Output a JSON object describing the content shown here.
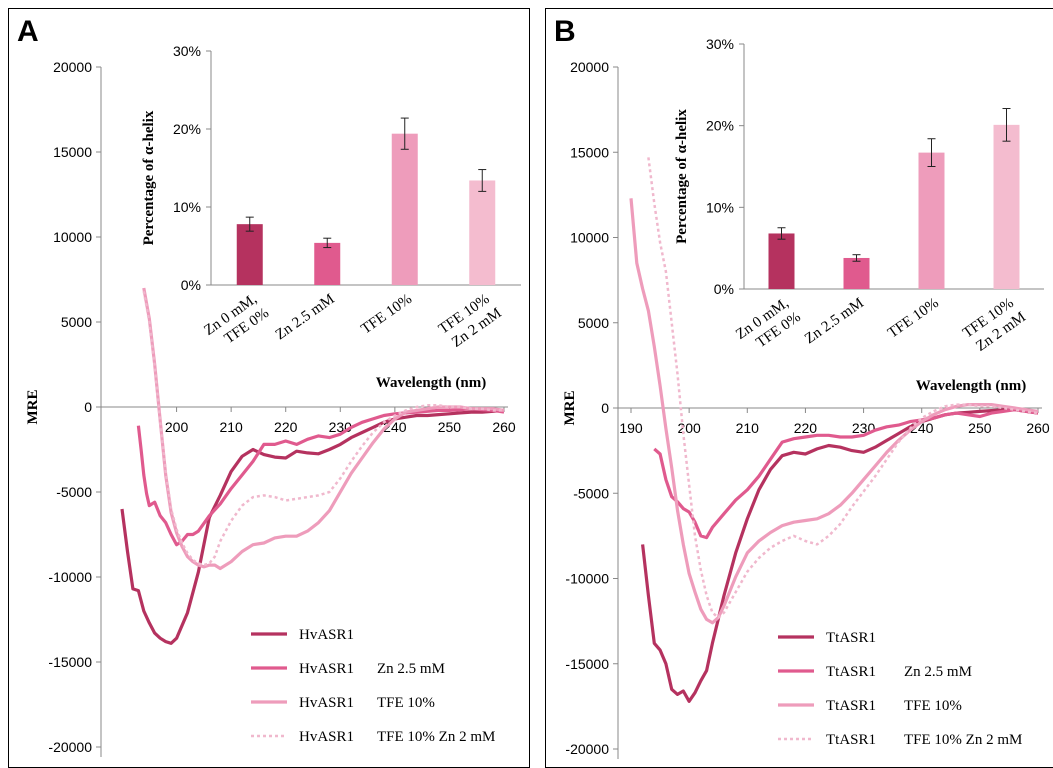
{
  "panels": [
    {
      "letter": "A",
      "main_x_ticks": [
        "200",
        "210",
        "220",
        "230",
        "240",
        "250",
        "260"
      ],
      "main_y_ticks": [
        "20000",
        "15000",
        "10000",
        "5000",
        "0",
        "-5000",
        "-10000",
        "-15000",
        "-20000"
      ]
    },
    {
      "letter": "B",
      "main_x_ticks": [
        "190",
        "200",
        "210",
        "220",
        "230",
        "240",
        "250",
        "260"
      ],
      "main_y_ticks": [
        "20000",
        "15000",
        "10000",
        "5000",
        "0",
        "-5000",
        "-10000",
        "-15000",
        "-20000"
      ]
    }
  ],
  "colors": {
    "series1": "#b5325f",
    "series2": "#e05a8e",
    "series3": "#ee9cbb",
    "series4": "#f0b8cd",
    "bar1": "#b5325f",
    "bar2": "#e05a8e",
    "bar3": "#ee9cbb",
    "bar4": "#f4bccf"
  },
  "chart_data": [
    {
      "type": "line",
      "panel": "A",
      "xlabel": "Wavelength (nm)",
      "ylabel": "MRE",
      "xlim": [
        190,
        260
      ],
      "ylim": [
        -20000,
        20000
      ],
      "x_ticks": [
        200,
        210,
        220,
        230,
        240,
        250,
        260
      ],
      "y_ticks": [
        20000,
        15000,
        10000,
        5000,
        0,
        -5000,
        -10000,
        -15000,
        -20000
      ],
      "legend_position": "bottom",
      "series": [
        {
          "name": "HvASR1",
          "style": "solid",
          "x": [
            190,
            191,
            192,
            193,
            194,
            195,
            196,
            197,
            198,
            199,
            200,
            202,
            204,
            206,
            208,
            210,
            212,
            214,
            216,
            218,
            220,
            222,
            224,
            226,
            228,
            230,
            232,
            234,
            236,
            238,
            240,
            242,
            244,
            246,
            248,
            250,
            252,
            254,
            256,
            258,
            260
          ],
          "y": [
            -6000,
            -8500,
            -10700,
            -10800,
            -12000,
            -12700,
            -13300,
            -13600,
            -13800,
            -13900,
            -13600,
            -12100,
            -9700,
            -6500,
            -5200,
            -3800,
            -2900,
            -2500,
            -2800,
            -2950,
            -3000,
            -2600,
            -2700,
            -2750,
            -2500,
            -2200,
            -1800,
            -1500,
            -1200,
            -900,
            -700,
            -600,
            -500,
            -500,
            -450,
            -400,
            -350,
            -300,
            -300,
            -250,
            -200
          ]
        },
        {
          "name": "HvASR1   Zn 2.5 mM",
          "style": "solid",
          "x": [
            193,
            193.5,
            194,
            194.5,
            195,
            195.5,
            196,
            197,
            198,
            199,
            200,
            201,
            202,
            203,
            204,
            206,
            208,
            210,
            212,
            214,
            216,
            218,
            220,
            222,
            224,
            226,
            228,
            230,
            232,
            234,
            236,
            238,
            240,
            242,
            244,
            246,
            248,
            250,
            252,
            254,
            256,
            258,
            260
          ],
          "y": [
            -1100,
            -2500,
            -4000,
            -5100,
            -5800,
            -5700,
            -5600,
            -6400,
            -6800,
            -7500,
            -8100,
            -7900,
            -7500,
            -7500,
            -7300,
            -6400,
            -5700,
            -4800,
            -4000,
            -3200,
            -2200,
            -2200,
            -2000,
            -2200,
            -1900,
            -1700,
            -1800,
            -1600,
            -1200,
            -900,
            -700,
            -500,
            -400,
            -350,
            -300,
            -250,
            -200,
            -200,
            -150,
            -100,
            -150,
            -200,
            -300
          ]
        },
        {
          "name": "HvASR1   TFE 10%",
          "style": "solid",
          "x": [
            194,
            195,
            196,
            197,
            198,
            199,
            200,
            201,
            202,
            203,
            204,
            205,
            206,
            207,
            208,
            210,
            212,
            214,
            216,
            218,
            220,
            222,
            224,
            226,
            228,
            230,
            232,
            234,
            236,
            238,
            240,
            242,
            244,
            246,
            248,
            250,
            252,
            254,
            256,
            258,
            260
          ],
          "y": [
            7000,
            5200,
            2500,
            -800,
            -4000,
            -6200,
            -7400,
            -8200,
            -8800,
            -9100,
            -9300,
            -9400,
            -9300,
            -9300,
            -9500,
            -9100,
            -8500,
            -8100,
            -8000,
            -7700,
            -7600,
            -7600,
            -7300,
            -6800,
            -6100,
            -5000,
            -3900,
            -3000,
            -2100,
            -1300,
            -700,
            -300,
            -200,
            -100,
            0,
            0,
            0,
            -100,
            -100,
            -100,
            -200
          ]
        },
        {
          "name": "HvASR1   TFE 10% Zn 2 mM",
          "style": "dotted",
          "x": [
            194,
            195,
            196,
            197,
            198,
            199,
            200,
            201,
            202,
            203,
            204,
            205,
            206,
            207,
            208,
            210,
            212,
            214,
            216,
            218,
            220,
            222,
            224,
            226,
            228,
            230,
            232,
            234,
            236,
            238,
            240,
            242,
            244,
            246,
            248,
            250,
            252,
            254,
            256,
            258,
            260
          ],
          "y": [
            6800,
            5000,
            2400,
            -900,
            -3800,
            -6000,
            -7200,
            -8000,
            -8600,
            -9000,
            -9200,
            -9300,
            -9200,
            -8800,
            -7900,
            -6700,
            -5800,
            -5300,
            -5200,
            -5300,
            -5500,
            -5400,
            -5300,
            -5200,
            -5000,
            -4200,
            -3200,
            -2300,
            -1500,
            -900,
            -500,
            -200,
            0,
            100,
            100,
            0,
            0,
            -100,
            -100,
            -200,
            -200
          ]
        }
      ],
      "inset": {
        "type": "bar",
        "ylabel": "Percentage of α-helix",
        "ylim": [
          0,
          30
        ],
        "y_ticks": [
          "0%",
          "10%",
          "20%",
          "30%"
        ],
        "categories": [
          [
            "Zn 0 mM,",
            "TFE 0%"
          ],
          [
            "Zn 2.5 mM"
          ],
          [
            "TFE 10%"
          ],
          [
            "TFE 10%",
            "Zn 2 mM"
          ]
        ],
        "values": [
          7.8,
          5.4,
          19.4,
          13.4
        ],
        "errors": [
          0.9,
          0.6,
          2.0,
          1.4
        ]
      }
    },
    {
      "type": "line",
      "panel": "B",
      "xlabel": "Wavelength (nm)",
      "ylabel": "MRE",
      "xlim": [
        190,
        260
      ],
      "ylim": [
        -20000,
        20000
      ],
      "x_ticks": [
        190,
        200,
        210,
        220,
        230,
        240,
        250,
        260
      ],
      "y_ticks": [
        20000,
        15000,
        10000,
        5000,
        0,
        -5000,
        -10000,
        -15000,
        -20000
      ],
      "legend_position": "bottom",
      "series": [
        {
          "name": "TtASR1",
          "style": "solid",
          "x": [
            192,
            193,
            194,
            195,
            196,
            197,
            198,
            199,
            200,
            201,
            202,
            203,
            204,
            206,
            208,
            210,
            212,
            214,
            216,
            218,
            220,
            222,
            224,
            226,
            228,
            230,
            232,
            234,
            236,
            238,
            240,
            242,
            244,
            246,
            248,
            250,
            252,
            254,
            256,
            258,
            260
          ],
          "y": [
            -8000,
            -11000,
            -13800,
            -14200,
            -15000,
            -16500,
            -16800,
            -16600,
            -17200,
            -16700,
            -16000,
            -15400,
            -13800,
            -11000,
            -8500,
            -6500,
            -4800,
            -3600,
            -2800,
            -2600,
            -2700,
            -2400,
            -2200,
            -2300,
            -2500,
            -2600,
            -2300,
            -1900,
            -1500,
            -1100,
            -800,
            -600,
            -400,
            -300,
            -250,
            -200,
            -150,
            -100,
            -100,
            -200,
            -300
          ]
        },
        {
          "name": "TtASR1   Zn 2.5 mM",
          "style": "solid",
          "x": [
            194,
            195,
            196,
            197,
            198,
            199,
            200,
            201,
            202,
            203,
            204,
            206,
            208,
            210,
            212,
            214,
            216,
            218,
            220,
            222,
            224,
            226,
            228,
            230,
            232,
            234,
            236,
            238,
            240,
            242,
            244,
            246,
            248,
            250,
            252,
            254,
            256,
            258,
            260
          ],
          "y": [
            -2400,
            -2700,
            -4200,
            -5200,
            -5500,
            -5900,
            -6100,
            -6700,
            -7500,
            -7600,
            -7000,
            -6200,
            -5400,
            -4800,
            -4000,
            -3000,
            -2000,
            -1800,
            -1700,
            -1600,
            -1600,
            -1700,
            -1700,
            -1600,
            -1300,
            -1100,
            -1000,
            -800,
            -700,
            -600,
            -400,
            -300,
            -400,
            -500,
            -300,
            -200,
            -100,
            -200,
            -300
          ]
        },
        {
          "name": "TtASR1   TFE 10%",
          "style": "solid",
          "x": [
            190,
            191,
            192,
            193,
            194,
            195,
            196,
            197,
            198,
            199,
            200,
            201,
            202,
            203,
            204,
            205,
            206,
            208,
            210,
            212,
            214,
            216,
            218,
            220,
            222,
            224,
            226,
            228,
            230,
            232,
            234,
            236,
            238,
            240,
            242,
            244,
            246,
            248,
            250,
            252,
            254,
            256,
            258,
            260
          ],
          "y": [
            12300,
            8500,
            7000,
            5700,
            3600,
            1300,
            -1200,
            -3500,
            -6000,
            -8000,
            -9700,
            -10800,
            -11800,
            -12400,
            -12600,
            -12300,
            -11600,
            -9900,
            -8500,
            -7800,
            -7300,
            -6900,
            -6700,
            -6600,
            -6500,
            -6200,
            -5700,
            -5000,
            -4200,
            -3400,
            -2600,
            -1900,
            -1300,
            -800,
            -400,
            -100,
            100,
            200,
            200,
            200,
            100,
            0,
            -100,
            -200
          ]
        },
        {
          "name": "TtASR1   TFE 10% Zn 2 mM",
          "style": "dotted",
          "x": [
            193,
            194,
            195,
            196,
            197,
            198,
            199,
            200,
            201,
            202,
            203,
            204,
            205,
            206,
            208,
            210,
            212,
            214,
            216,
            218,
            220,
            222,
            224,
            226,
            228,
            230,
            232,
            234,
            236,
            238,
            240,
            242,
            244,
            246,
            248,
            250,
            252,
            254,
            256,
            258,
            260
          ],
          "y": [
            14700,
            12000,
            9700,
            8000,
            5000,
            2000,
            -1500,
            -4500,
            -7500,
            -9500,
            -11000,
            -12000,
            -12300,
            -12000,
            -10800,
            -9600,
            -8800,
            -8200,
            -7800,
            -7500,
            -7800,
            -8000,
            -7500,
            -6800,
            -5800,
            -4900,
            -4000,
            -3000,
            -2000,
            -1200,
            -600,
            -200,
            100,
            200,
            200,
            100,
            100,
            0,
            -100,
            -200,
            -300
          ]
        }
      ],
      "inset": {
        "type": "bar",
        "ylabel": "Percentage of α-helix",
        "ylim": [
          0,
          30
        ],
        "y_ticks": [
          "0%",
          "10%",
          "20%",
          "30%"
        ],
        "categories": [
          [
            "Zn 0 mM,",
            "TFE 0%"
          ],
          [
            "Zn 2.5 mM"
          ],
          [
            "TFE 10%"
          ],
          [
            "TFE 10%",
            "Zn 2 mM"
          ]
        ],
        "values": [
          6.8,
          3.8,
          16.7,
          20.1
        ],
        "errors": [
          0.7,
          0.4,
          1.7,
          2.0
        ]
      }
    }
  ]
}
